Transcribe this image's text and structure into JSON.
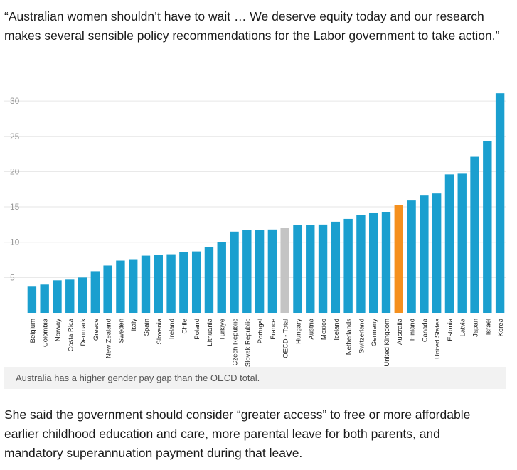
{
  "article": {
    "quote": "“Australian women shouldn’t have to wait … We deserve equity today and our research makes several sensible policy recommendations for the Labor government to take action.”",
    "caption": "Australia has a higher gender pay gap than the OECD total.",
    "after_paragraph": "She said the government should consider “greater access” to free or more affordable earlier childhood education and care, more parental leave for both parents, and mandatory superannuation payment during that leave."
  },
  "colors": {
    "bar": "#1a9fcf",
    "oecd": "#c4c4c4",
    "australia": "#f5901e",
    "grid": "#e6e6e6",
    "tick_label": "#9a9a9a",
    "category_label": "#222222"
  },
  "chart_data": {
    "type": "bar",
    "title": "",
    "xlabel": "",
    "ylabel": "",
    "ylim": [
      0,
      31
    ],
    "yticks": [
      5,
      10,
      15,
      20,
      25,
      30
    ],
    "grid": true,
    "categories": [
      "Belgium",
      "Colombia",
      "Norway",
      "Costa Rica",
      "Denmark",
      "Greece",
      "New Zealand",
      "Sweden",
      "Italy",
      "Spain",
      "Slovenia",
      "Ireland",
      "Chile",
      "Poland",
      "Lithuania",
      "Türkiye",
      "Czech Republic",
      "Slovak Republic",
      "Portugal",
      "France",
      "OECD - Total",
      "Hungary",
      "Austria",
      "Mexico",
      "Iceland",
      "Netherlands",
      "Switzerland",
      "Germany",
      "United Kingdom",
      "Australia",
      "Finland",
      "Canada",
      "United States",
      "Estonia",
      "Latvia",
      "Japan",
      "Israel",
      "Korea"
    ],
    "values": [
      3.8,
      4.0,
      4.6,
      4.7,
      5.0,
      5.9,
      6.7,
      7.4,
      7.6,
      8.1,
      8.2,
      8.3,
      8.6,
      8.7,
      9.3,
      10.0,
      11.5,
      11.7,
      11.7,
      11.8,
      12.0,
      12.4,
      12.4,
      12.5,
      12.9,
      13.3,
      13.8,
      14.2,
      14.3,
      15.3,
      16.0,
      16.7,
      16.9,
      19.6,
      19.7,
      22.1,
      24.3,
      31.1
    ],
    "highlight": {
      "OECD - Total": "oecd",
      "Australia": "australia"
    }
  }
}
